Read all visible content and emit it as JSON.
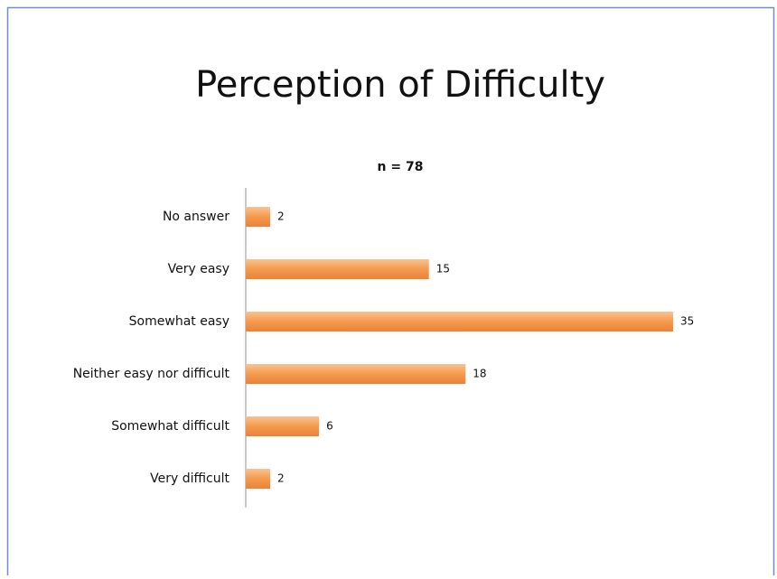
{
  "chart_data": {
    "type": "bar",
    "orientation": "horizontal",
    "title": "Perception of Difficulty",
    "subtitle": "n = 78",
    "categories": [
      "No answer",
      "Very easy",
      "Somewhat easy",
      "Neither easy nor difficult",
      "Somewhat difficult",
      "Very difficult"
    ],
    "values": [
      2,
      15,
      35,
      18,
      6,
      2
    ],
    "color": "#f59a4c",
    "xlim": [
      0,
      35
    ]
  }
}
